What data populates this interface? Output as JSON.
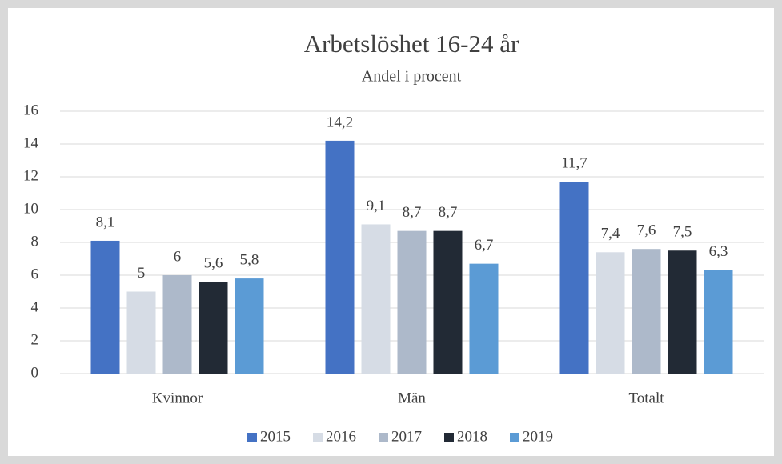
{
  "chart_data": {
    "type": "bar",
    "title": "Arbetslöshet 16-24 år",
    "subtitle": "Andel i procent",
    "categories": [
      "Kvinnor",
      "Män",
      "Totalt"
    ],
    "series": [
      {
        "name": "2015",
        "color": "#4472c4",
        "values": [
          8.1,
          14.2,
          11.7
        ],
        "value_labels": [
          "8,1",
          "14,2",
          "11,7"
        ]
      },
      {
        "name": "2016",
        "color": "#d6dce5",
        "values": [
          5,
          9.1,
          7.4
        ],
        "value_labels": [
          "5",
          "9,1",
          "7,4"
        ]
      },
      {
        "name": "2017",
        "color": "#adb9ca",
        "values": [
          6,
          8.7,
          7.6
        ],
        "value_labels": [
          "6",
          "8,7",
          "7,6"
        ]
      },
      {
        "name": "2018",
        "color": "#222a35",
        "values": [
          5.6,
          8.7,
          7.5
        ],
        "value_labels": [
          "5,6",
          "8,7",
          "7,5"
        ]
      },
      {
        "name": "2019",
        "color": "#5b9bd5",
        "values": [
          5.8,
          6.7,
          6.3
        ],
        "value_labels": [
          "5,8",
          "6,7",
          "6,3"
        ]
      }
    ],
    "ylim": [
      0,
      16
    ],
    "yticks": [
      0,
      2,
      4,
      6,
      8,
      10,
      12,
      14,
      16
    ],
    "grid": true,
    "legend": "bottom"
  }
}
